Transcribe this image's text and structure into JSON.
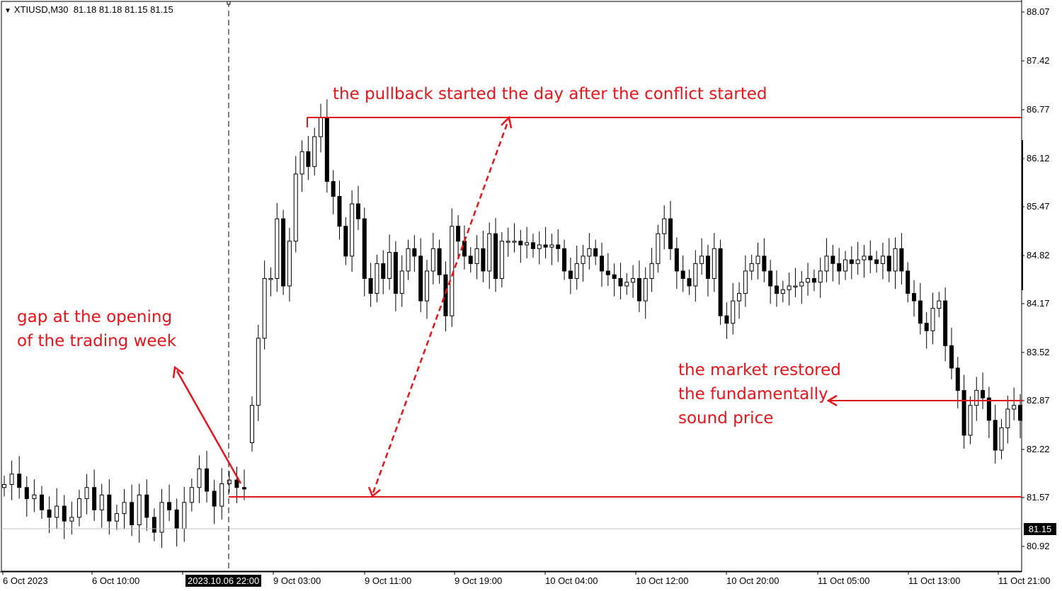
{
  "header": {
    "symbol_label": "XTIUSD,M30",
    "ohlc": "81.18 81.18 81.15 81.15"
  },
  "annotations": {
    "gap_line1": "gap at the opening",
    "gap_line2": "of the trading week",
    "pullback": "the pullback started the day after the conflict started",
    "restored_line1": "the market restored",
    "restored_line2": "the fundamentally",
    "restored_line3": "sound price"
  },
  "price_axis": {
    "ticks": [
      "88.07",
      "87.42",
      "86.77",
      "86.12",
      "85.47",
      "84.82",
      "84.17",
      "83.52",
      "82.87",
      "82.22",
      "81.57",
      "80.92"
    ],
    "current_price": "81.15"
  },
  "time_axis": {
    "ticks": [
      "6 Oct 2023",
      "6 Oct 10:00",
      "9 Oct 03:00",
      "9 Oct 11:00",
      "9 Oct 19:00",
      "10 Oct 04:00",
      "10 Oct 12:00",
      "10 Oct 20:00",
      "11 Oct 05:00",
      "11 Oct 13:00",
      "11 Oct 21:00"
    ],
    "crosshair_time": "2023.10.06 22:00"
  },
  "colors": {
    "annotation": "#e8141b",
    "candle_up": "#ffffff",
    "candle_down": "#000000",
    "background": "#ffffff"
  },
  "chart_data": {
    "type": "candlestick",
    "symbol": "XTIUSD",
    "timeframe": "M30",
    "ylim": [
      80.85,
      88.1
    ],
    "levels": {
      "week_open_low": 81.57,
      "pullback_high": 86.66,
      "restored_price": 82.87,
      "current_bid": 81.15
    },
    "series": [
      {
        "name": "week_before_gap",
        "close_path": [
          81.74,
          81.88,
          81.7,
          81.55,
          81.6,
          81.4,
          81.3,
          81.45,
          81.25,
          81.3,
          81.55,
          81.7,
          81.4,
          81.6,
          81.25,
          81.35,
          81.5,
          81.2,
          81.6,
          81.3,
          81.1,
          81.5,
          81.4,
          81.15,
          81.5,
          81.7,
          81.95,
          81.65,
          81.45,
          81.75,
          81.8,
          81.7,
          81.68
        ]
      },
      {
        "name": "after_gap",
        "close_path": [
          82.8,
          83.7,
          84.5,
          84.5,
          85.3,
          84.4,
          85.0,
          85.9,
          86.2,
          86.0,
          86.4,
          86.66,
          85.8,
          85.6,
          85.2,
          84.8,
          85.5,
          85.3,
          84.5,
          84.3,
          84.7,
          84.5,
          84.85,
          84.3,
          84.6,
          84.9,
          84.8,
          84.2,
          84.6,
          84.9,
          84.55,
          84.0,
          85.2,
          85.0,
          84.8,
          84.7,
          84.9,
          84.6,
          85.1,
          84.5,
          85.0,
          85.0,
          85.0,
          84.95,
          84.98,
          84.9,
          84.95,
          84.92,
          84.95,
          84.9,
          84.6,
          84.5,
          84.7,
          84.8,
          84.9,
          84.8,
          84.6,
          84.55,
          84.5,
          84.4,
          84.45,
          84.5,
          84.2,
          84.5,
          84.7,
          85.1,
          85.3,
          84.9,
          84.6,
          84.5,
          84.4,
          84.7,
          84.8,
          84.5,
          84.9,
          84.0,
          83.9,
          84.2,
          84.3,
          84.6,
          84.7,
          84.8,
          84.6,
          84.4,
          84.3,
          84.35,
          84.4,
          84.4,
          84.45,
          84.5,
          84.45,
          84.6,
          84.8,
          84.7,
          84.6,
          84.75,
          84.7,
          84.75,
          84.8,
          84.75,
          84.7,
          84.8,
          84.6,
          84.9,
          84.6,
          84.3,
          84.2,
          83.9,
          83.8,
          84.1,
          84.2,
          83.6,
          83.3,
          83.0,
          82.4,
          82.8,
          83.0,
          82.9,
          82.6,
          82.2,
          82.5,
          82.75,
          82.8,
          82.6
        ]
      }
    ]
  }
}
